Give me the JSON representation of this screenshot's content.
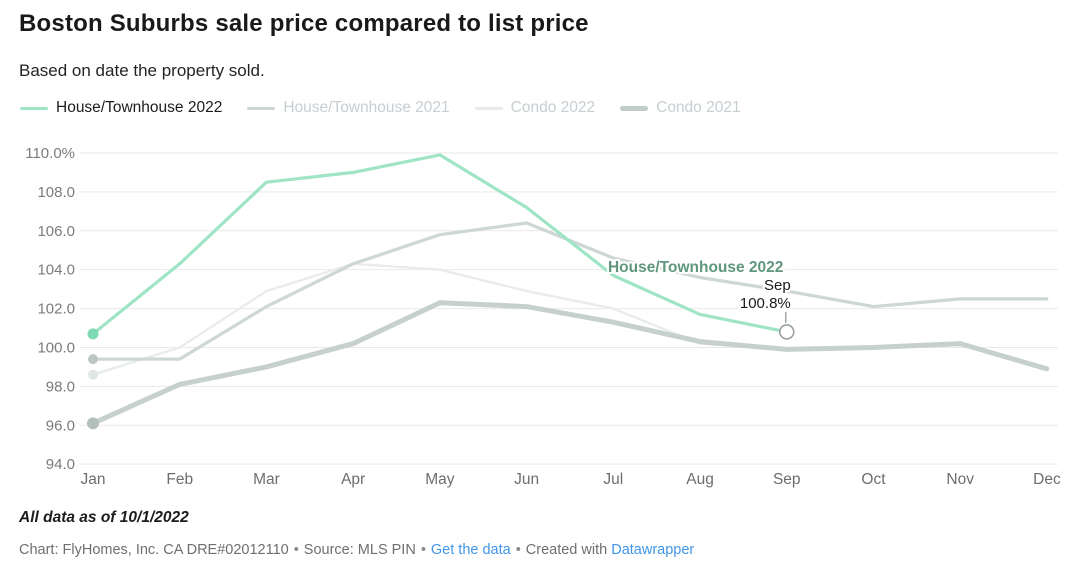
{
  "header": {
    "title": "Boston Suburbs sale price compared to list price",
    "subtitle": "Based on date the property sold."
  },
  "legend": {
    "items": [
      {
        "label": "House/Townhouse 2022",
        "color": "#9fe4c5",
        "text_color": "#1d1d1d",
        "thickness": 3,
        "active": true
      },
      {
        "label": "House/Townhouse 2021",
        "color": "#ccd6d2",
        "text_color": "#c7ced2",
        "thickness": 3,
        "active": false
      },
      {
        "label": "Condo 2022",
        "color": "#e7ece9",
        "text_color": "#c7ced2",
        "thickness": 3,
        "active": false
      },
      {
        "label": "Condo 2021",
        "color": "#c2ccc8",
        "text_color": "#c7ced2",
        "thickness": 5,
        "active": false
      }
    ]
  },
  "chart_data": {
    "type": "line",
    "title": "Boston Suburbs sale price compared to list price",
    "xlabel": "",
    "ylabel": "",
    "x": [
      "Jan",
      "Feb",
      "Mar",
      "Apr",
      "May",
      "Jun",
      "Jul",
      "Aug",
      "Sep",
      "Oct",
      "Nov",
      "Dec"
    ],
    "ylim": [
      94,
      110
    ],
    "grid": true,
    "legend_position": "top",
    "yticks": [
      {
        "value": 110,
        "label": "110.0%"
      },
      {
        "value": 108,
        "label": "108.0"
      },
      {
        "value": 106,
        "label": "106.0"
      },
      {
        "value": 104,
        "label": "104.0"
      },
      {
        "value": 102,
        "label": "102.0"
      },
      {
        "value": 100,
        "label": "100.0"
      },
      {
        "value": 98,
        "label": "98.0"
      },
      {
        "value": 96,
        "label": "96.0"
      },
      {
        "value": 94,
        "label": "94.0"
      }
    ],
    "series": [
      {
        "name": "House/Townhouse 2022",
        "color": "#9fe4c5",
        "dot_color": "#7edab4",
        "width": 3.2,
        "dot_r": 5.5,
        "values": [
          100.7,
          104.3,
          108.5,
          109.0,
          109.9,
          107.2,
          103.7,
          101.7,
          100.8,
          null,
          null,
          null
        ]
      },
      {
        "name": "House/Townhouse 2021",
        "color": "#cdd7d3",
        "dot_color": "#bac7c2",
        "width": 3.2,
        "dot_r": 5,
        "values": [
          99.4,
          99.4,
          102.1,
          104.3,
          105.8,
          106.4,
          104.6,
          103.6,
          102.9,
          102.1,
          102.5,
          102.5
        ]
      },
      {
        "name": "Condo 2022",
        "color": "#e8edea",
        "dot_color": "#dfe6e3",
        "width": 2.4,
        "dot_r": 5,
        "values": [
          98.6,
          100.0,
          102.9,
          104.3,
          104.0,
          102.9,
          102.0,
          100.2,
          99.9,
          null,
          null,
          null
        ]
      },
      {
        "name": "Condo 2021",
        "color": "#c6d0cc",
        "dot_color": "#b3bfba",
        "width": 5,
        "dot_r": 6,
        "values": [
          96.1,
          98.1,
          99.0,
          100.2,
          102.3,
          102.1,
          101.3,
          100.3,
          99.9,
          100.0,
          100.2,
          98.9
        ]
      }
    ],
    "annotations": {
      "series_label": {
        "text": "House/Townhouse 2022",
        "color": "#5f977e",
        "x_index": 6.95,
        "value": 104.15
      },
      "point_label": {
        "series": "House/Townhouse 2022",
        "x": "Sep",
        "title": "Sep",
        "value_text": "100.8%"
      }
    }
  },
  "footer": {
    "note": "All data as of 10/1/2022",
    "byline": "Chart: FlyHomes, Inc. CA DRE#02012110",
    "source_label": "Source: MLS PIN",
    "get_data_link": "Get the data",
    "created_with": "Created with",
    "datawrapper_link": "Datawrapper",
    "separator": "•"
  }
}
